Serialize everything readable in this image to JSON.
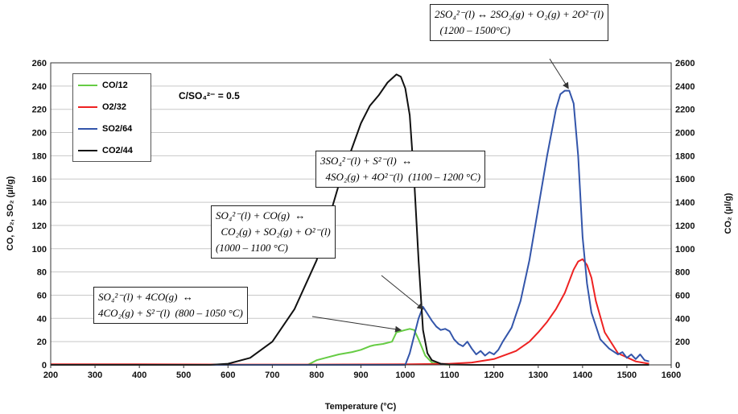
{
  "chart_data": {
    "type": "line",
    "xlabel": "Temperature (°C)",
    "ylabel_left": "CO, O₂, SO₂ (µl/g)",
    "ylabel_right": "CO₂ (µl/g)",
    "xlim": [
      200,
      1600
    ],
    "ylim_left": [
      0,
      260
    ],
    "ylim_right": [
      0,
      2600
    ],
    "x_ticks": [
      200,
      300,
      400,
      500,
      600,
      700,
      800,
      900,
      1000,
      1100,
      1200,
      1300,
      1400,
      1500,
      1600
    ],
    "y_ticks_left": [
      0,
      20,
      40,
      60,
      80,
      100,
      120,
      140,
      160,
      180,
      200,
      220,
      240,
      260
    ],
    "y_ticks_right": [
      0,
      200,
      400,
      600,
      800,
      1000,
      1200,
      1400,
      1600,
      1800,
      2000,
      2200,
      2400,
      2600
    ],
    "grid": "horizontal",
    "legend_position": "top-left",
    "series": [
      {
        "name": "CO/12",
        "color": "#66cc44",
        "axis": "left",
        "x": [
          200,
          780,
          800,
          820,
          850,
          880,
          900,
          920,
          930,
          950,
          970,
          980,
          1000,
          1010,
          1020,
          1030,
          1045,
          1060,
          1080,
          1100
        ],
        "y": [
          0,
          0,
          4,
          6,
          9,
          11,
          13,
          16,
          17,
          18,
          20,
          28,
          30,
          31,
          30,
          22,
          8,
          2,
          0.5,
          0
        ]
      },
      {
        "name": "O2/32",
        "color": "#ee2222",
        "axis": "left",
        "x": [
          200,
          400,
          600,
          800,
          1000,
          1100,
          1150,
          1200,
          1250,
          1280,
          1300,
          1320,
          1340,
          1360,
          1370,
          1380,
          1390,
          1400,
          1410,
          1420,
          1430,
          1450,
          1480,
          1520,
          1550
        ],
        "y": [
          0.5,
          0.5,
          0.3,
          0.3,
          0.5,
          1,
          2,
          5,
          12,
          20,
          28,
          37,
          48,
          62,
          72,
          82,
          89,
          91,
          86,
          75,
          55,
          28,
          10,
          3,
          1
        ]
      },
      {
        "name": "SO2/64",
        "color": "#3355aa",
        "axis": "left",
        "x": [
          200,
          800,
          1000,
          1010,
          1020,
          1030,
          1040,
          1050,
          1060,
          1070,
          1080,
          1090,
          1100,
          1110,
          1120,
          1130,
          1140,
          1150,
          1160,
          1170,
          1180,
          1190,
          1200,
          1210,
          1220,
          1240,
          1260,
          1280,
          1300,
          1320,
          1340,
          1350,
          1360,
          1370,
          1380,
          1390,
          1400,
          1410,
          1420,
          1440,
          1460,
          1480,
          1490,
          1500,
          1510,
          1520,
          1530,
          1540,
          1550
        ],
        "y": [
          0,
          0,
          0,
          10,
          25,
          40,
          50,
          44,
          38,
          33,
          30,
          31,
          29,
          22,
          18,
          16,
          20,
          14,
          9,
          12,
          8,
          11,
          9,
          13,
          20,
          32,
          55,
          90,
          135,
          180,
          220,
          233,
          236,
          236,
          225,
          180,
          110,
          70,
          45,
          22,
          14,
          9,
          11,
          6,
          9,
          5,
          9,
          4,
          3
        ]
      },
      {
        "name": "CO2/44",
        "color": "#111111",
        "axis": "right",
        "x": [
          200,
          560,
          600,
          650,
          700,
          750,
          800,
          850,
          900,
          920,
          940,
          960,
          980,
          990,
          1000,
          1010,
          1020,
          1030,
          1040,
          1050,
          1060,
          1080,
          1100,
          1150,
          1200,
          1300,
          1400,
          1500,
          1550
        ],
        "y": [
          0,
          0,
          10,
          60,
          200,
          480,
          900,
          1550,
          2080,
          2230,
          2320,
          2430,
          2500,
          2480,
          2380,
          2150,
          1600,
          900,
          300,
          100,
          40,
          10,
          3,
          0,
          0,
          0,
          0,
          0,
          0
        ]
      }
    ]
  },
  "annotations": {
    "ratio": "C/SO₄²⁻ = 0.5",
    "eq1_line1": "SO₄²⁻(l) + 4CO(g)  ↔",
    "eq1_line2": "4CO₂(g) + S²⁻(l)  (800 – 1050 °C)",
    "eq2_line1": "SO₄²⁻(l) + CO(g)  ↔",
    "eq2_line2": "  CO₂(g) + SO₂(g) + O²⁻(l)",
    "eq2_line3": "(1000 – 1100 °C)",
    "eq3_line1": "3SO₄²⁻(l) + S²⁻(l)  ↔",
    "eq3_line2": "  4SO₂(g) + 4O²⁻(l)  (1100 – 1200 °C)",
    "eq4_line1": "2SO₄²⁻(l) ↔ 2SO₂(g) + O₂(g) + 2O²⁻(l)",
    "eq4_line2": "  (1200 – 1500°C)"
  }
}
